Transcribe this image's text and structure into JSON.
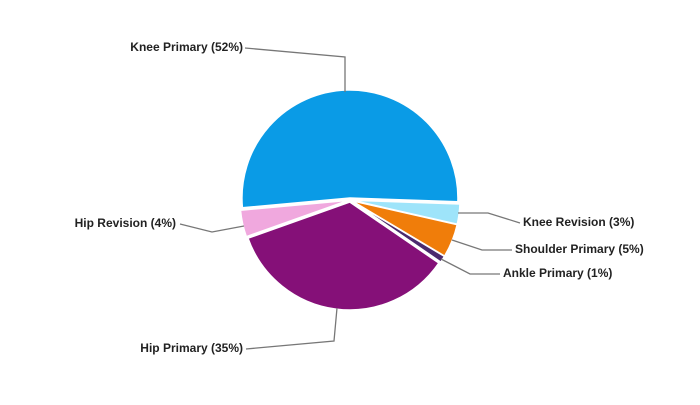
{
  "chart_data": {
    "type": "pie",
    "values": [
      52,
      4,
      35,
      1,
      5,
      3
    ],
    "value_labels": [
      "Knee Primary (52%)",
      "Hip Revision (4%)",
      "Hip Primary (35%)",
      "Ankle Primary (1%)",
      "Shoulder Primary (5%)",
      "Knee Revision (3%)"
    ],
    "colors": [
      "#0a9be6",
      "#f0a8de",
      "#851078",
      "#4b2a6e",
      "#f07d0a",
      "#9ee4fa"
    ]
  }
}
